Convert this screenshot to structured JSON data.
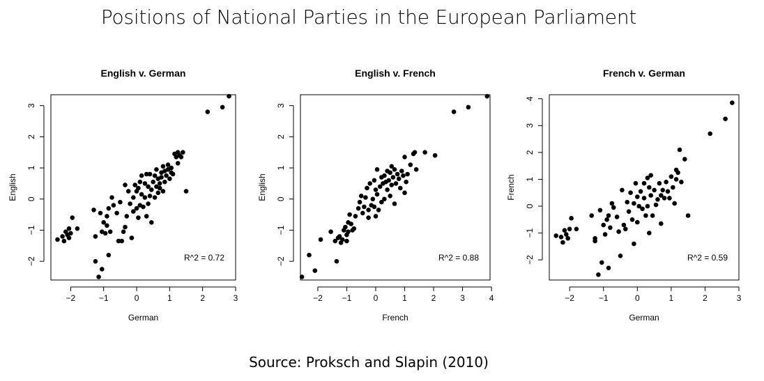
{
  "title": "Positions of National Parties in the European Parliament",
  "source": "Source: Proksch and Slapin (2010)",
  "chart_data": [
    {
      "type": "scatter",
      "title": "English v. German",
      "xlabel": "German",
      "ylabel": "English",
      "xlim": [
        -2.6,
        3.0
      ],
      "ylim": [
        -2.6,
        3.35
      ],
      "xticks": [
        -2,
        -1,
        0,
        1,
        2,
        3
      ],
      "yticks": [
        -2,
        -1,
        0,
        1,
        2,
        3
      ],
      "annotation": "R^2 = 0.72",
      "points": [
        [
          -2.4,
          -1.3
        ],
        [
          -2.25,
          -1.2
        ],
        [
          -2.2,
          -1.35
        ],
        [
          -2.15,
          -1.05
        ],
        [
          -2.1,
          -1.15
        ],
        [
          -2.05,
          -1.25
        ],
        [
          -2.05,
          -0.95
        ],
        [
          -2.0,
          -1.1
        ],
        [
          -1.95,
          -0.6
        ],
        [
          -1.8,
          -0.95
        ],
        [
          -1.3,
          -0.35
        ],
        [
          -1.25,
          -1.2
        ],
        [
          -1.25,
          -2.0
        ],
        [
          -1.15,
          -2.5
        ],
        [
          -1.1,
          -0.45
        ],
        [
          -1.05,
          -2.25
        ],
        [
          -1.05,
          -1.05
        ],
        [
          -1.0,
          -0.75
        ],
        [
          -0.95,
          -1.1
        ],
        [
          -0.9,
          -0.55
        ],
        [
          -0.9,
          -0.85
        ],
        [
          -0.85,
          -1.8
        ],
        [
          -0.85,
          -0.3
        ],
        [
          -0.8,
          -1.05
        ],
        [
          -0.75,
          0.05
        ],
        [
          -0.7,
          -0.2
        ],
        [
          -0.6,
          -0.45
        ],
        [
          -0.55,
          -1.35
        ],
        [
          -0.5,
          -0.1
        ],
        [
          -0.45,
          -1.35
        ],
        [
          -0.4,
          -1.05
        ],
        [
          -0.35,
          -0.9
        ],
        [
          -0.35,
          0.45
        ],
        [
          -0.3,
          -0.55
        ],
        [
          -0.25,
          0.25
        ],
        [
          -0.2,
          -0.15
        ],
        [
          -0.15,
          -1.25
        ],
        [
          -0.1,
          -0.4
        ],
        [
          -0.1,
          0.05
        ],
        [
          -0.05,
          0.45
        ],
        [
          0.0,
          -0.3
        ],
        [
          0.0,
          0.25
        ],
        [
          0.05,
          -0.6
        ],
        [
          0.05,
          0.35
        ],
        [
          0.1,
          -0.2
        ],
        [
          0.1,
          0.55
        ],
        [
          0.15,
          0.15
        ],
        [
          0.15,
          0.75
        ],
        [
          0.2,
          -0.25
        ],
        [
          0.25,
          0.05
        ],
        [
          0.25,
          0.5
        ],
        [
          0.3,
          0.8
        ],
        [
          0.3,
          -0.55
        ],
        [
          0.35,
          0.4
        ],
        [
          0.35,
          -0.15
        ],
        [
          0.4,
          0.1
        ],
        [
          0.4,
          0.8
        ],
        [
          0.45,
          0.3
        ],
        [
          0.45,
          -0.75
        ],
        [
          0.5,
          0.55
        ],
        [
          0.55,
          0.75
        ],
        [
          0.55,
          0.05
        ],
        [
          0.6,
          0.4
        ],
        [
          0.6,
          0.95
        ],
        [
          0.65,
          0.65
        ],
        [
          0.65,
          0.2
        ],
        [
          0.7,
          0.5
        ],
        [
          0.7,
          0.35
        ],
        [
          0.75,
          0.7
        ],
        [
          0.75,
          0.85
        ],
        [
          0.8,
          1.05
        ],
        [
          0.8,
          0.25
        ],
        [
          0.85,
          0.55
        ],
        [
          0.85,
          0.9
        ],
        [
          0.9,
          0.75
        ],
        [
          0.95,
          0.95
        ],
        [
          0.95,
          1.1
        ],
        [
          1.0,
          0.65
        ],
        [
          1.05,
          0.85
        ],
        [
          1.05,
          1.0
        ],
        [
          1.1,
          0.8
        ],
        [
          1.15,
          1.45
        ],
        [
          1.2,
          1.35
        ],
        [
          1.25,
          1.5
        ],
        [
          1.25,
          1.15
        ],
        [
          1.3,
          1.4
        ],
        [
          1.35,
          1.35
        ],
        [
          1.4,
          1.5
        ],
        [
          1.5,
          0.25
        ],
        [
          2.15,
          2.8
        ],
        [
          2.6,
          2.95
        ],
        [
          2.8,
          3.3
        ]
      ]
    },
    {
      "type": "scatter",
      "title": "English v. French",
      "xlabel": "French",
      "ylabel": "English",
      "xlim": [
        -2.6,
        3.95
      ],
      "ylim": [
        -2.6,
        3.35
      ],
      "xticks": [
        -2,
        -1,
        0,
        1,
        2,
        3,
        4
      ],
      "yticks": [
        -2,
        -1,
        0,
        1,
        2,
        3
      ],
      "annotation": "R^2 = 0.88",
      "points": [
        [
          -2.55,
          -2.5
        ],
        [
          -2.3,
          -1.8
        ],
        [
          -2.1,
          -2.3
        ],
        [
          -1.9,
          -1.3
        ],
        [
          -1.55,
          -1.05
        ],
        [
          -1.4,
          -1.35
        ],
        [
          -1.35,
          -2.0
        ],
        [
          -1.3,
          -1.25
        ],
        [
          -1.25,
          -1.2
        ],
        [
          -1.2,
          -1.4
        ],
        [
          -1.15,
          -1.3
        ],
        [
          -1.1,
          -1.0
        ],
        [
          -1.05,
          -0.9
        ],
        [
          -1.0,
          -1.35
        ],
        [
          -1.0,
          -1.15
        ],
        [
          -0.95,
          -0.75
        ],
        [
          -0.95,
          -1.05
        ],
        [
          -0.9,
          -0.5
        ],
        [
          -0.85,
          -0.8
        ],
        [
          -0.8,
          -1.0
        ],
        [
          -0.75,
          -0.95
        ],
        [
          -0.7,
          -0.55
        ],
        [
          -0.6,
          -0.3
        ],
        [
          -0.55,
          -0.1
        ],
        [
          -0.5,
          0.1
        ],
        [
          -0.45,
          -0.45
        ],
        [
          -0.4,
          -0.25
        ],
        [
          -0.35,
          0.05
        ],
        [
          -0.3,
          0.35
        ],
        [
          -0.25,
          -0.6
        ],
        [
          -0.25,
          -0.35
        ],
        [
          -0.2,
          0.5
        ],
        [
          -0.15,
          -0.2
        ],
        [
          -0.1,
          0.0
        ],
        [
          -0.05,
          0.6
        ],
        [
          -0.05,
          -0.25
        ],
        [
          0.0,
          0.3
        ],
        [
          0.0,
          -0.55
        ],
        [
          0.05,
          0.15
        ],
        [
          0.05,
          0.95
        ],
        [
          0.1,
          -0.35
        ],
        [
          0.15,
          0.4
        ],
        [
          0.2,
          0.7
        ],
        [
          0.2,
          -0.1
        ],
        [
          0.25,
          0.5
        ],
        [
          0.3,
          0.0
        ],
        [
          0.3,
          0.75
        ],
        [
          0.35,
          0.55
        ],
        [
          0.4,
          0.3
        ],
        [
          0.4,
          0.9
        ],
        [
          0.45,
          0.6
        ],
        [
          0.5,
          0.85
        ],
        [
          0.5,
          0.1
        ],
        [
          0.55,
          1.05
        ],
        [
          0.55,
          0.45
        ],
        [
          0.6,
          0.7
        ],
        [
          0.65,
          0.95
        ],
        [
          0.65,
          -0.15
        ],
        [
          0.7,
          0.5
        ],
        [
          0.75,
          0.8
        ],
        [
          0.8,
          0.65
        ],
        [
          0.85,
          0.35
        ],
        [
          0.9,
          0.9
        ],
        [
          0.95,
          0.75
        ],
        [
          1.0,
          1.35
        ],
        [
          1.0,
          0.2
        ],
        [
          1.05,
          0.55
        ],
        [
          1.1,
          0.8
        ],
        [
          1.2,
          1.1
        ],
        [
          1.3,
          1.45
        ],
        [
          1.35,
          1.5
        ],
        [
          1.4,
          0.95
        ],
        [
          1.7,
          1.5
        ],
        [
          2.05,
          1.4
        ],
        [
          2.7,
          2.8
        ],
        [
          3.2,
          2.95
        ],
        [
          3.85,
          3.3
        ]
      ]
    },
    {
      "type": "scatter",
      "title": "French v. German",
      "xlabel": "German",
      "ylabel": "French",
      "xlim": [
        -2.6,
        3.0
      ],
      "ylim": [
        -2.75,
        4.15
      ],
      "xticks": [
        -2,
        -1,
        0,
        1,
        2,
        3
      ],
      "yticks": [
        -2,
        -1,
        0,
        1,
        2,
        3,
        4
      ],
      "annotation": "R^2 = 0.59",
      "points": [
        [
          -2.4,
          -1.1
        ],
        [
          -2.25,
          -1.15
        ],
        [
          -2.2,
          -1.35
        ],
        [
          -2.15,
          -0.9
        ],
        [
          -2.1,
          -1.05
        ],
        [
          -2.05,
          -1.2
        ],
        [
          -2.0,
          -0.85
        ],
        [
          -1.95,
          -0.45
        ],
        [
          -1.8,
          -0.85
        ],
        [
          -1.35,
          -0.35
        ],
        [
          -1.25,
          -1.2
        ],
        [
          -1.25,
          -1.3
        ],
        [
          -1.15,
          -2.55
        ],
        [
          -1.1,
          -0.15
        ],
        [
          -1.05,
          -2.1
        ],
        [
          -1.0,
          -0.7
        ],
        [
          -0.95,
          -1.05
        ],
        [
          -0.9,
          -0.5
        ],
        [
          -0.85,
          -2.3
        ],
        [
          -0.85,
          -0.35
        ],
        [
          -0.8,
          -0.8
        ],
        [
          -0.75,
          0.1
        ],
        [
          -0.7,
          -0.05
        ],
        [
          -0.6,
          -0.4
        ],
        [
          -0.55,
          -0.95
        ],
        [
          -0.5,
          -1.85
        ],
        [
          -0.45,
          0.6
        ],
        [
          -0.4,
          -0.7
        ],
        [
          -0.35,
          -0.85
        ],
        [
          -0.3,
          0.15
        ],
        [
          -0.25,
          -0.2
        ],
        [
          -0.2,
          0.5
        ],
        [
          -0.15,
          -0.5
        ],
        [
          -0.1,
          0.1
        ],
        [
          -0.1,
          -1.4
        ],
        [
          -0.05,
          0.85
        ],
        [
          0.0,
          0.35
        ],
        [
          0.0,
          -0.6
        ],
        [
          0.05,
          0.0
        ],
        [
          0.1,
          0.55
        ],
        [
          0.15,
          -0.1
        ],
        [
          0.2,
          0.85
        ],
        [
          0.2,
          0.3
        ],
        [
          0.25,
          -0.35
        ],
        [
          0.3,
          1.05
        ],
        [
          0.3,
          0.0
        ],
        [
          0.35,
          0.7
        ],
        [
          0.35,
          -1.0
        ],
        [
          0.4,
          1.15
        ],
        [
          0.4,
          0.4
        ],
        [
          0.45,
          -0.35
        ],
        [
          0.5,
          0.6
        ],
        [
          0.55,
          0.05
        ],
        [
          0.6,
          0.25
        ],
        [
          0.65,
          0.85
        ],
        [
          0.7,
          -0.65
        ],
        [
          0.7,
          0.4
        ],
        [
          0.75,
          0.6
        ],
        [
          0.8,
          0.3
        ],
        [
          0.85,
          0.9
        ],
        [
          0.9,
          0.55
        ],
        [
          0.95,
          0.3
        ],
        [
          1.0,
          1.1
        ],
        [
          1.05,
          0.7
        ],
        [
          1.1,
          0.1
        ],
        [
          1.15,
          1.35
        ],
        [
          1.15,
          1.0
        ],
        [
          1.2,
          1.25
        ],
        [
          1.25,
          2.1
        ],
        [
          1.3,
          0.9
        ],
        [
          1.4,
          1.75
        ],
        [
          1.5,
          -0.35
        ],
        [
          2.15,
          2.7
        ],
        [
          2.6,
          3.25
        ],
        [
          2.8,
          3.85
        ]
      ]
    }
  ]
}
